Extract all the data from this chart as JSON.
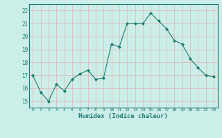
{
  "x": [
    0,
    1,
    2,
    3,
    4,
    5,
    6,
    7,
    8,
    9,
    10,
    11,
    12,
    13,
    14,
    15,
    16,
    17,
    18,
    19,
    20,
    21,
    22,
    23
  ],
  "y": [
    17.0,
    15.7,
    15.0,
    16.3,
    15.8,
    16.7,
    17.1,
    17.4,
    16.7,
    16.8,
    19.4,
    19.2,
    21.0,
    21.0,
    21.0,
    21.8,
    21.2,
    20.6,
    19.7,
    19.4,
    18.3,
    17.6,
    17.0,
    16.9
  ],
  "line_color": "#1a7a6e",
  "marker": "D",
  "marker_size": 2.0,
  "bg_color": "#cceee8",
  "grid_color": "#ddbbbb",
  "xlabel": "Humidex (Indice chaleur)",
  "ylabel_ticks": [
    15,
    16,
    17,
    18,
    19,
    20,
    21,
    22
  ],
  "xtick_labels": [
    "0",
    "1",
    "2",
    "3",
    "4",
    "5",
    "6",
    "7",
    "8",
    "9",
    "10",
    "11",
    "12",
    "13",
    "14",
    "15",
    "16",
    "17",
    "18",
    "19",
    "20",
    "21",
    "22",
    "23"
  ],
  "ylim": [
    14.5,
    22.5
  ],
  "xlim": [
    -0.5,
    23.5
  ]
}
